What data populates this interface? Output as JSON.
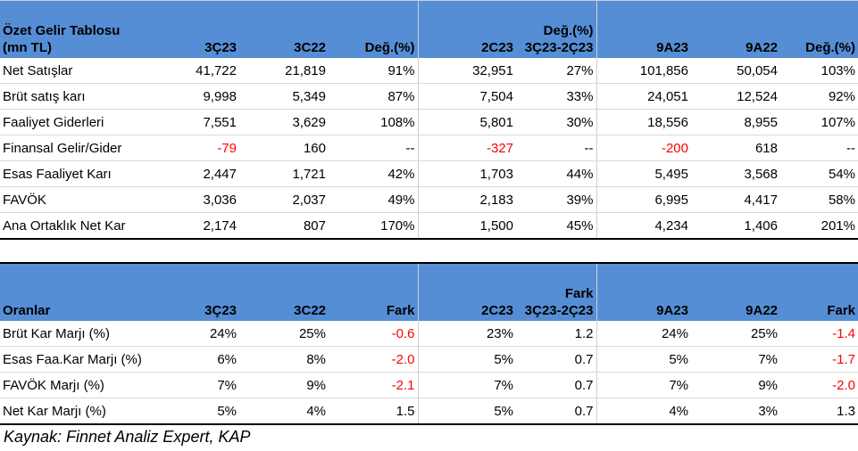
{
  "table1": {
    "header": {
      "label_line1": "Özet Gelir Tablosu",
      "label_line2": "(mn TL)",
      "col1": "3Ç23",
      "col2": "3C22",
      "col3": "Değ.(%)",
      "col4": "2C23",
      "col5_line1": "Değ.(%)",
      "col5_line2": "3Ç23-2Ç23",
      "col6": "9A23",
      "col7": "9A22",
      "col8": "Değ.(%)"
    },
    "rows": [
      {
        "label": "Net Satışlar",
        "v": [
          "41,722",
          "21,819",
          "91%",
          "32,951",
          "27%",
          "101,856",
          "50,054",
          "103%"
        ],
        "neg": [
          false,
          false,
          false,
          false,
          false,
          false,
          false,
          false
        ]
      },
      {
        "label": "Brüt satış karı",
        "v": [
          "9,998",
          "5,349",
          "87%",
          "7,504",
          "33%",
          "24,051",
          "12,524",
          "92%"
        ],
        "neg": [
          false,
          false,
          false,
          false,
          false,
          false,
          false,
          false
        ]
      },
      {
        "label": "Faaliyet Giderleri",
        "v": [
          "7,551",
          "3,629",
          "108%",
          "5,801",
          "30%",
          "18,556",
          "8,955",
          "107%"
        ],
        "neg": [
          false,
          false,
          false,
          false,
          false,
          false,
          false,
          false
        ]
      },
      {
        "label": "Finansal Gelir/Gider",
        "v": [
          "-79",
          "160",
          "--",
          "-327",
          "--",
          "-200",
          "618",
          "--"
        ],
        "neg": [
          true,
          false,
          false,
          true,
          false,
          true,
          false,
          false
        ]
      },
      {
        "label": "Esas Faaliyet Karı",
        "v": [
          "2,447",
          "1,721",
          "42%",
          "1,703",
          "44%",
          "5,495",
          "3,568",
          "54%"
        ],
        "neg": [
          false,
          false,
          false,
          false,
          false,
          false,
          false,
          false
        ]
      },
      {
        "label": "FAVÖK",
        "v": [
          "3,036",
          "2,037",
          "49%",
          "2,183",
          "39%",
          "6,995",
          "4,417",
          "58%"
        ],
        "neg": [
          false,
          false,
          false,
          false,
          false,
          false,
          false,
          false
        ]
      },
      {
        "label": "Ana Ortaklık Net Kar",
        "v": [
          "2,174",
          "807",
          "170%",
          "1,500",
          "45%",
          "4,234",
          "1,406",
          "201%"
        ],
        "neg": [
          false,
          false,
          false,
          false,
          false,
          false,
          false,
          false
        ]
      }
    ]
  },
  "table2": {
    "header": {
      "label": "Oranlar",
      "col1": "3Ç23",
      "col2": "3C22",
      "col3": "Fark",
      "col4": "2C23",
      "col5_line1": "Fark",
      "col5_line2": "3Ç23-2Ç23",
      "col6": "9A23",
      "col7": "9A22",
      "col8": "Fark"
    },
    "rows": [
      {
        "label": "Brüt Kar Marjı (%)",
        "v": [
          "24%",
          "25%",
          "-0.6",
          "23%",
          "1.2",
          "24%",
          "25%",
          "-1.4"
        ],
        "neg": [
          false,
          false,
          true,
          false,
          false,
          false,
          false,
          true
        ]
      },
      {
        "label": "Esas Faa.Kar Marjı (%)",
        "v": [
          "6%",
          "8%",
          "-2.0",
          "5%",
          "0.7",
          "5%",
          "7%",
          "-1.7"
        ],
        "neg": [
          false,
          false,
          true,
          false,
          false,
          false,
          false,
          true
        ]
      },
      {
        "label": "FAVÖK Marjı (%)",
        "v": [
          "7%",
          "9%",
          "-2.1",
          "7%",
          "0.7",
          "7%",
          "9%",
          "-2.0"
        ],
        "neg": [
          false,
          false,
          true,
          false,
          false,
          false,
          false,
          true
        ]
      },
      {
        "label": "Net Kar Marjı (%)",
        "v": [
          "5%",
          "4%",
          "1.5",
          "5%",
          "0.7",
          "4%",
          "3%",
          "1.3"
        ],
        "neg": [
          false,
          false,
          false,
          false,
          false,
          false,
          false,
          false
        ]
      }
    ]
  },
  "source": "Kaynak: Finnet Analiz Expert, KAP",
  "colors": {
    "header_bg": "#558ed5",
    "negative": "#ff0000"
  }
}
